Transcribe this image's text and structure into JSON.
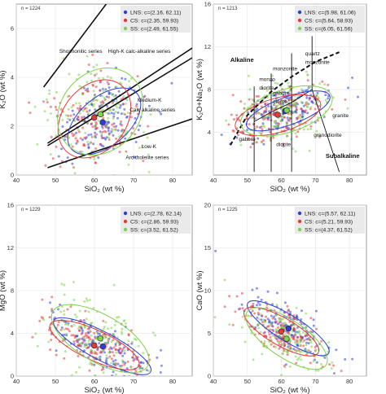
{
  "figure": {
    "background": "#ffffff",
    "grid_color": "#e4e4e4",
    "colors": {
      "LNS": "#2b3fd6",
      "CS": "#e8383a",
      "SS": "#7fd34c"
    }
  },
  "chart_data": [
    {
      "type": "scatter",
      "n_label": "n = 1224",
      "xlabel": "SiO₂ (wt %)",
      "ylabel": "K₂O (wt %)",
      "xlim": [
        40,
        85
      ],
      "ylim": [
        0,
        7
      ],
      "xticks": [
        40,
        50,
        60,
        70,
        80
      ],
      "xtick_labels": [
        "40",
        "50",
        "60",
        "70",
        "80"
      ],
      "yticks": [
        0,
        2,
        4,
        6
      ],
      "ytick_labels": [
        "0",
        "2",
        "4",
        "6"
      ],
      "grid": true,
      "legend_position": "top-right",
      "series": [
        {
          "name": "LNS: c=(2.16, 62.11)",
          "key": "LNS",
          "centroid": [
            62.11,
            2.16
          ],
          "ellipse": {
            "cx": 62.5,
            "cy": 2.2,
            "rx": 11.0,
            "ry": 1.0,
            "angle": 40
          }
        },
        {
          "name": "CS: c=(2.35, 59.93)",
          "key": "CS",
          "centroid": [
            59.93,
            2.35
          ],
          "ellipse": {
            "cx": 60.0,
            "cy": 2.3,
            "rx": 11.0,
            "ry": 1.3,
            "angle": 52
          }
        },
        {
          "name": "SS: c=(2.49, 61.55)",
          "key": "SS",
          "centroid": [
            61.55,
            2.49
          ],
          "ellipse": {
            "cx": 61.5,
            "cy": 2.6,
            "rx": 12.0,
            "ry": 1.6,
            "angle": 48
          }
        }
      ],
      "lines": [
        {
          "points": [
            [
              47,
              3.6
            ],
            [
              63,
              7.0
            ]
          ]
        },
        {
          "points": [
            [
              48,
              1.3
            ],
            [
              85,
              5.2
            ]
          ]
        },
        {
          "points": [
            [
              48,
              1.2
            ],
            [
              85,
              4.8
            ]
          ]
        },
        {
          "points": [
            [
              48,
              0.3
            ],
            [
              85,
              2.3
            ]
          ]
        }
      ],
      "annotations": [
        {
          "text": "Shoshonitic series",
          "x": 51,
          "y": 5.0,
          "bold": false
        },
        {
          "text": "High-K calc-alkaline series",
          "x": 63.5,
          "y": 5.0,
          "bold": false
        },
        {
          "text": "Medium-K",
          "x": 71,
          "y": 3.0,
          "bold": false
        },
        {
          "text": "Calc alkaline series",
          "x": 69,
          "y": 2.6,
          "bold": false
        },
        {
          "text": "Low-K",
          "x": 72,
          "y": 1.1,
          "bold": false
        },
        {
          "text": "Arc tholeiite series",
          "x": 68,
          "y": 0.65,
          "bold": false
        }
      ]
    },
    {
      "type": "scatter",
      "n_label": "n = 1213",
      "xlabel": "SiO₂ (wt %)",
      "ylabel": "K₂O+Na₂O (wt %)",
      "xlim": [
        40,
        85
      ],
      "ylim": [
        0,
        16
      ],
      "xticks": [
        40,
        50,
        60,
        70,
        80
      ],
      "xtick_labels": [
        "40",
        "50",
        "60",
        "70",
        "80"
      ],
      "yticks": [
        4,
        8,
        12,
        16
      ],
      "ytick_labels": [
        "4",
        "8",
        "12",
        "16"
      ],
      "grid": true,
      "legend_position": "top-right",
      "series": [
        {
          "name": "LNS: c=(5.98, 61.06)",
          "key": "LNS",
          "centroid": [
            61.06,
            5.98
          ],
          "ellipse": {
            "cx": 62.0,
            "cy": 6.0,
            "rx": 13.0,
            "ry": 1.3,
            "angle": 20
          }
        },
        {
          "name": "CS: c=(5.64, 58.93)",
          "key": "CS",
          "centroid": [
            58.93,
            5.64
          ],
          "ellipse": {
            "cx": 59.0,
            "cy": 5.6,
            "rx": 13.0,
            "ry": 1.6,
            "angle": 16
          }
        },
        {
          "name": "SS: c=(6.05, 61.56)",
          "key": "SS",
          "centroid": [
            61.56,
            6.05
          ],
          "ellipse": {
            "cx": 61.5,
            "cy": 6.0,
            "rx": 14.0,
            "ry": 2.0,
            "angle": 18
          }
        }
      ],
      "lines": [
        {
          "points": [
            [
              52,
              5.0
            ],
            [
              57,
              5.9
            ],
            [
              63,
              6.8
            ],
            [
              69,
              8.0
            ]
          ]
        },
        {
          "points": [
            [
              52,
              5.0
            ],
            [
              52,
              8.3
            ]
          ]
        },
        {
          "points": [
            [
              57,
              5.9
            ],
            [
              57,
              9.5
            ]
          ]
        },
        {
          "points": [
            [
              63,
              6.8
            ],
            [
              63,
              11.4
            ]
          ]
        },
        {
          "points": [
            [
              69,
              8.0
            ],
            [
              69,
              13.0
            ]
          ]
        },
        {
          "points": [
            [
              63,
              6.8
            ],
            [
              63,
              0.3
            ]
          ]
        },
        {
          "points": [
            [
              57,
              5.9
            ],
            [
              57,
              0.3
            ]
          ]
        },
        {
          "points": [
            [
              69,
              8.0
            ],
            [
              77,
              0.3
            ]
          ]
        },
        {
          "points": [
            [
              52,
              5.0
            ],
            [
              52,
              0.3
            ]
          ]
        }
      ],
      "dashed_line": {
        "points": [
          [
            45,
            2.8
          ],
          [
            50,
            5.6
          ],
          [
            57,
            7.8
          ],
          [
            63,
            9.2
          ],
          [
            70,
            10.6
          ],
          [
            77,
            11.5
          ]
        ]
      },
      "annotations": [
        {
          "text": "Alkaline",
          "x": 45,
          "y": 10.6,
          "bold": true
        },
        {
          "text": "monzonite",
          "x": 57.5,
          "y": 9.8,
          "bold": false
        },
        {
          "text": "quartz",
          "x": 67.0,
          "y": 11.2,
          "bold": false
        },
        {
          "text": "monzonite",
          "x": 67.0,
          "y": 10.4,
          "bold": false
        },
        {
          "text": "monzo",
          "x": 53.5,
          "y": 8.8,
          "bold": false
        },
        {
          "text": "diorite",
          "x": 53.5,
          "y": 8.0,
          "bold": false
        },
        {
          "text": "gabbro",
          "x": 57.5,
          "y": 7.5,
          "bold": false
        },
        {
          "text": "diorite",
          "x": 57.5,
          "y": 6.7,
          "bold": false
        },
        {
          "text": "granite",
          "x": 75,
          "y": 5.4,
          "bold": false
        },
        {
          "text": "gabbro",
          "x": 47.5,
          "y": 3.2,
          "bold": false
        },
        {
          "text": "diorite",
          "x": 58.5,
          "y": 2.7,
          "bold": false
        },
        {
          "text": "granodiorite",
          "x": 69.5,
          "y": 3.6,
          "bold": false
        },
        {
          "text": "Subalkaline",
          "x": 73,
          "y": 1.6,
          "bold": true
        }
      ]
    },
    {
      "type": "scatter",
      "n_label": "n = 1229",
      "xlabel": "SiO₂ (wt %)",
      "ylabel": "MgO (wt %)",
      "xlim": [
        40,
        85
      ],
      "ylim": [
        0,
        16
      ],
      "xticks": [
        40,
        50,
        60,
        70,
        80
      ],
      "xtick_labels": [
        "40",
        "50",
        "60",
        "70",
        "80"
      ],
      "yticks": [
        0,
        4,
        8,
        12,
        16
      ],
      "ytick_labels": [
        "0",
        "4",
        "8",
        "12",
        "16"
      ],
      "grid": true,
      "legend_position": "top-right",
      "series": [
        {
          "name": "LNS: c=(2.78, 62.14)",
          "key": "LNS",
          "centroid": [
            62.14,
            2.78
          ],
          "ellipse": {
            "cx": 62.0,
            "cy": 2.8,
            "rx": 14.0,
            "ry": 1.3,
            "angle": -28
          }
        },
        {
          "name": "CS: c=(2.86, 59.93)",
          "key": "CS",
          "centroid": [
            59.93,
            2.86
          ],
          "ellipse": {
            "cx": 60.0,
            "cy": 2.9,
            "rx": 12.5,
            "ry": 1.4,
            "angle": -25
          }
        },
        {
          "name": "SS: c=(3.52, 61.52)",
          "key": "SS",
          "centroid": [
            61.52,
            3.52
          ],
          "ellipse": {
            "cx": 61.5,
            "cy": 3.5,
            "rx": 14.0,
            "ry": 2.2,
            "angle": -30
          }
        }
      ]
    },
    {
      "type": "scatter",
      "n_label": "n = 1225",
      "xlabel": "SiO₂ (wt %)",
      "ylabel": "CaO (wt %)",
      "xlim": [
        40,
        85
      ],
      "ylim": [
        0,
        20
      ],
      "xticks": [
        40,
        50,
        60,
        70,
        80
      ],
      "xtick_labels": [
        "40",
        "50",
        "60",
        "70",
        "80"
      ],
      "yticks": [
        0,
        5,
        10,
        15,
        20
      ],
      "ytick_labels": [
        "0",
        "5",
        "10",
        "15",
        "20"
      ],
      "grid": true,
      "legend_position": "top-right",
      "series": [
        {
          "name": "LNS: c=(5.57, 62.11)",
          "key": "LNS",
          "centroid": [
            62.11,
            5.57
          ],
          "ellipse": {
            "cx": 62.0,
            "cy": 5.6,
            "rx": 14.0,
            "ry": 1.5,
            "angle": -32
          }
        },
        {
          "name": "CS: c=(5.21, 59.93)",
          "key": "CS",
          "centroid": [
            59.93,
            5.21
          ],
          "ellipse": {
            "cx": 60.0,
            "cy": 5.2,
            "rx": 12.5,
            "ry": 1.6,
            "angle": -30
          }
        },
        {
          "name": "SS: c=(4.37, 61.52)",
          "key": "SS",
          "centroid": [
            61.52,
            4.37
          ],
          "ellipse": {
            "cx": 61.5,
            "cy": 4.4,
            "rx": 14.0,
            "ry": 2.2,
            "angle": -34
          }
        }
      ]
    }
  ]
}
